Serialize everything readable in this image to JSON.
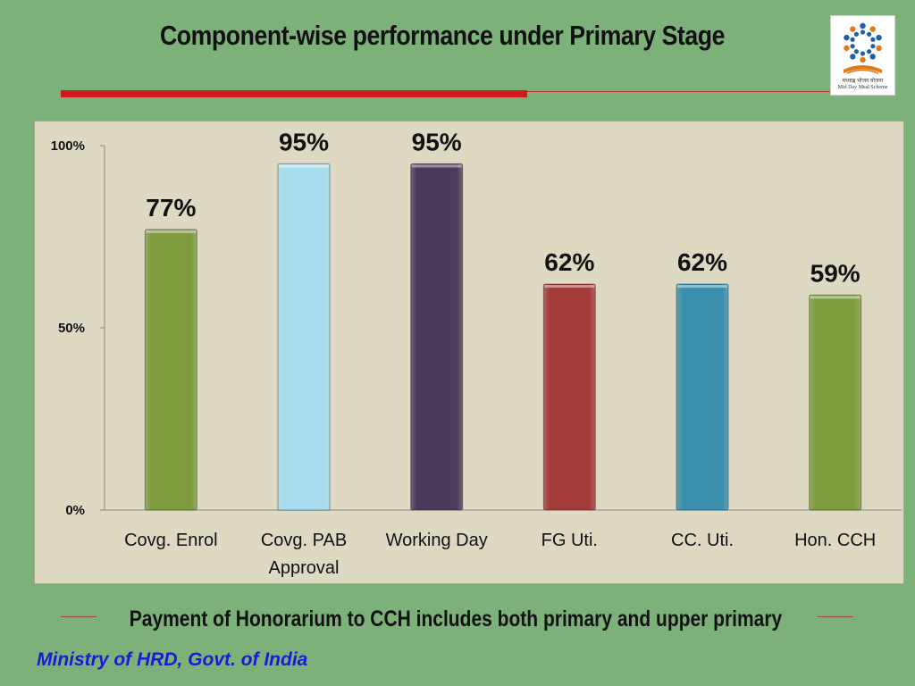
{
  "slide": {
    "title": "Component-wise performance under Primary Stage",
    "footnote": "Payment of Honorarium to CCH includes both primary and upper primary",
    "ministry": "Ministry of HRD, Govt. of India",
    "logo": {
      "icon": "mid-day-meal-logo",
      "caption_hindi": "मध्याह्न भोजन योजना",
      "caption": "Mid Day Meal Scheme"
    }
  },
  "chart_data": {
    "type": "bar",
    "title": "",
    "xlabel": "",
    "ylabel": "",
    "categories": [
      "Covg. Enrol",
      "Covg. PAB Approval",
      "Working Day",
      "FG Uti.",
      "CC. Uti.",
      "Hon. CCH"
    ],
    "values": [
      77,
      95,
      95,
      62,
      62,
      59
    ],
    "data_labels": [
      "77%",
      "95%",
      "95%",
      "62%",
      "62%",
      "59%"
    ],
    "ylim": [
      0,
      100
    ],
    "yticks": [
      {
        "value": 0,
        "label": "0%"
      },
      {
        "value": 50,
        "label": "50%"
      },
      {
        "value": 100,
        "label": "100%"
      }
    ],
    "grid": false,
    "legend": "none",
    "colors": [
      "#7e9b3e",
      "#a6dcee",
      "#4a3a5c",
      "#a33b3b",
      "#3a8fad",
      "#7e9b3e"
    ],
    "background": "#ddd9c3"
  }
}
